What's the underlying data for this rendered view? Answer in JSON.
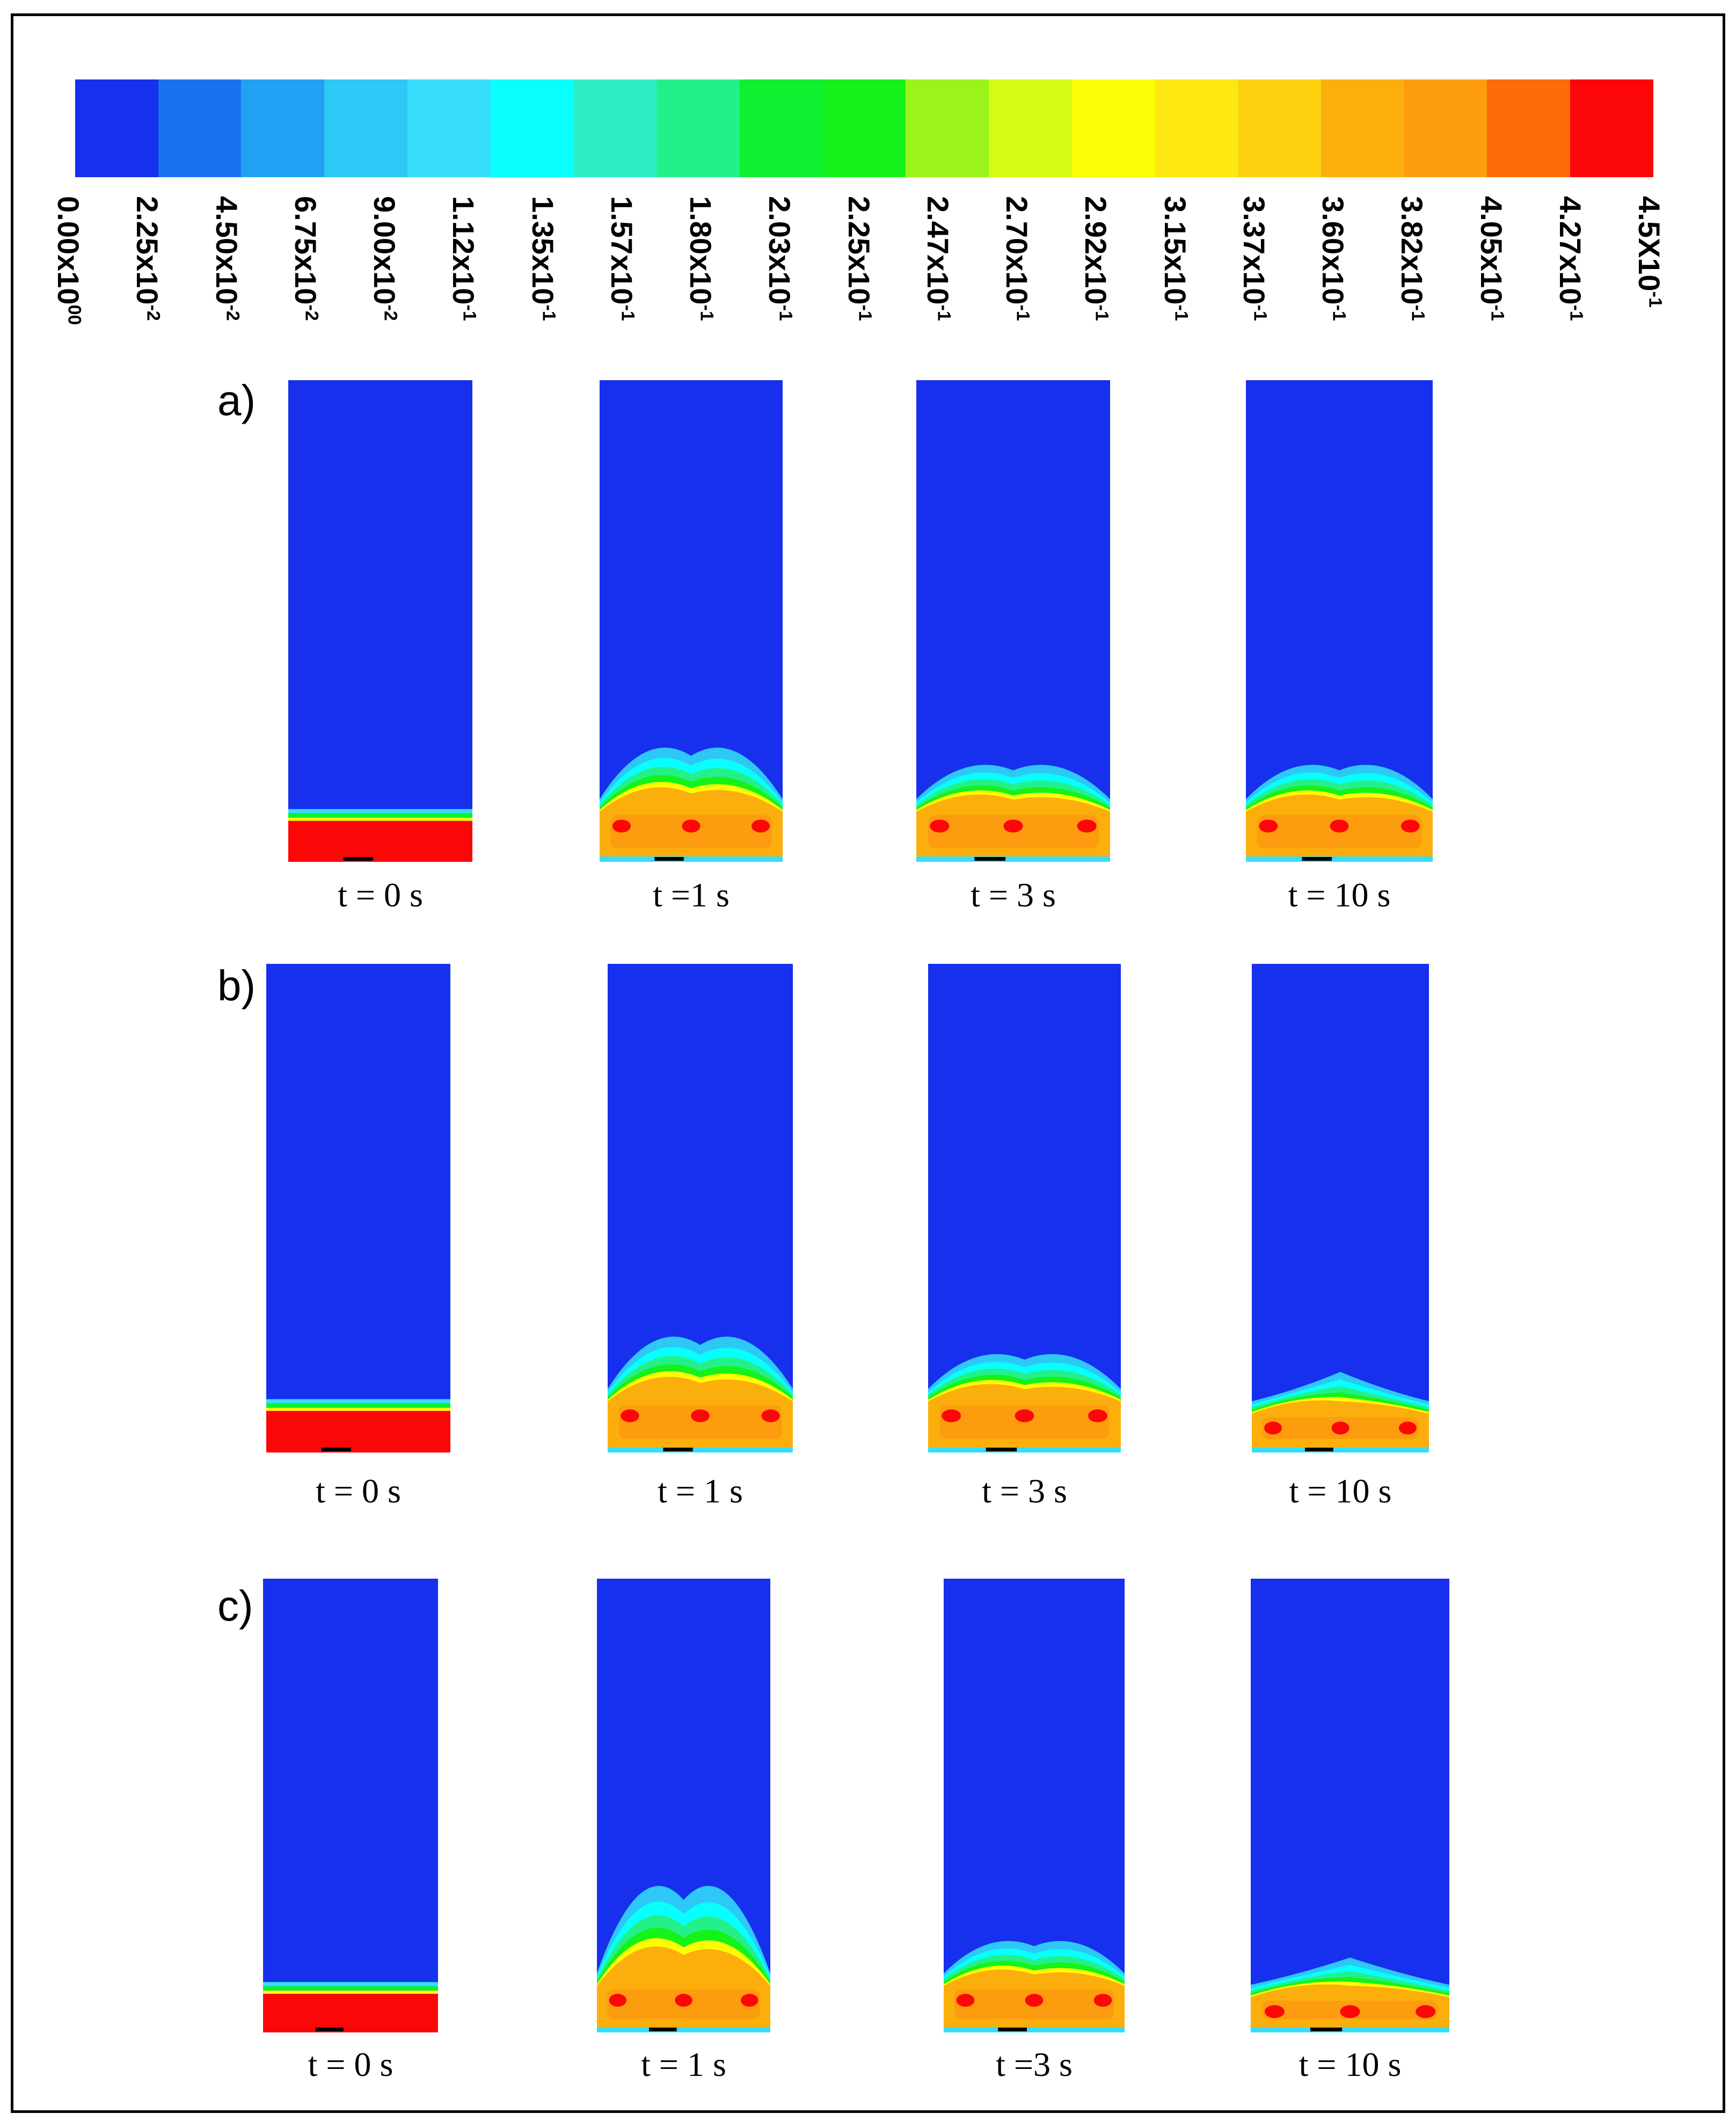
{
  "colorbar": {
    "colors": [
      "#1630ee",
      "#1b72f1",
      "#22a1f4",
      "#2dc8f6",
      "#36defb",
      "#08fffd",
      "#2eeec4",
      "#24f08a",
      "#0ef030",
      "#15f21a",
      "#9af41b",
      "#d6fb14",
      "#fcfd05",
      "#fde812",
      "#fdd00f",
      "#fcae0c",
      "#fd9c0f",
      "#fc6b09",
      "#fc0708"
    ],
    "ticks": [
      {
        "mant": "0.00x10",
        "exp": "00"
      },
      {
        "mant": "2.25x10",
        "exp": "-2"
      },
      {
        "mant": "4.50x10",
        "exp": "-2"
      },
      {
        "mant": "6.75x10",
        "exp": "-2"
      },
      {
        "mant": "9.00x10",
        "exp": "-2"
      },
      {
        "mant": "1.12x10",
        "exp": "-1"
      },
      {
        "mant": "1.35x10",
        "exp": "-1"
      },
      {
        "mant": "1.57x10",
        "exp": "-1"
      },
      {
        "mant": "1.80x10",
        "exp": "-1"
      },
      {
        "mant": "2.03x10",
        "exp": "-1"
      },
      {
        "mant": "2.25x10",
        "exp": "-1"
      },
      {
        "mant": "2.47x10",
        "exp": "-1"
      },
      {
        "mant": "2.70x10",
        "exp": "-1"
      },
      {
        "mant": "2.92x10",
        "exp": "-1"
      },
      {
        "mant": "3.15x10",
        "exp": "-1"
      },
      {
        "mant": "3.37x10",
        "exp": "-1"
      },
      {
        "mant": "3.60x10",
        "exp": "-1"
      },
      {
        "mant": "3.82x10",
        "exp": "-1"
      },
      {
        "mant": "4.05x10",
        "exp": "-1"
      },
      {
        "mant": "4.27x10",
        "exp": "-1"
      },
      {
        "mant": "4.5X10",
        "exp": "-1"
      }
    ]
  },
  "rows": [
    {
      "label": "a)",
      "panels": [
        {
          "caption": "t = 0 s",
          "state": "initial"
        },
        {
          "caption": "t =1 s",
          "state": "bubbling"
        },
        {
          "caption": "t = 3 s",
          "state": "expanded"
        },
        {
          "caption": "t = 10 s",
          "state": "expanded"
        }
      ]
    },
    {
      "label": "b)",
      "panels": [
        {
          "caption": "t = 0 s",
          "state": "initial"
        },
        {
          "caption": "t = 1 s",
          "state": "bubbling"
        },
        {
          "caption": "t = 3 s",
          "state": "expanded"
        },
        {
          "caption": "t = 10 s",
          "state": "flat"
        }
      ]
    },
    {
      "label": "c)",
      "panels": [
        {
          "caption": "t = 0 s",
          "state": "initial"
        },
        {
          "caption": "t = 1 s",
          "state": "tall"
        },
        {
          "caption": "t =3 s",
          "state": "expanded"
        },
        {
          "caption": "t = 10 s",
          "state": "flat"
        }
      ]
    }
  ]
}
